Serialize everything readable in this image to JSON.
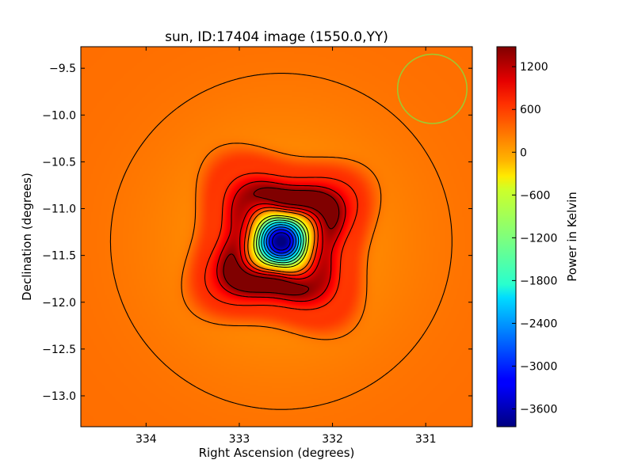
{
  "chart_data": {
    "type": "heatmap",
    "title": "sun, ID:17404 image (1550.0,YY)",
    "xlabel": "Right Ascension (degrees)",
    "ylabel": "Declination (degrees)",
    "xlim": [
      334.7,
      330.5
    ],
    "ylim": [
      -13.33,
      -9.27
    ],
    "x_inverted": true,
    "xticks": [
      334,
      333,
      332,
      331
    ],
    "xtick_labels": [
      "334",
      "333",
      "332",
      "331"
    ],
    "yticks": [
      -9.5,
      -10.0,
      -10.5,
      -11.0,
      -11.5,
      -12.0,
      -12.5,
      -13.0
    ],
    "ytick_labels": [
      "−9.5",
      "−10.0",
      "−10.5",
      "−11.0",
      "−11.5",
      "−12.0",
      "−12.5",
      "−13.0"
    ],
    "colormap": "jet",
    "colorbar": {
      "label": "Power in Kelvin",
      "range": [
        -3850,
        1480
      ],
      "ticks": [
        1200,
        600,
        0,
        -600,
        -1200,
        -1800,
        -2400,
        -3000,
        -3600
      ],
      "tick_labels": [
        "1200",
        "600",
        "0",
        "−600",
        "−1200",
        "−1800",
        "−2400",
        "−3000",
        "−3600"
      ]
    },
    "background_value": 240,
    "source": {
      "center_ra": 332.55,
      "center_dec": -11.35,
      "core_min_value": -3800,
      "ring_max_value": 1450
    },
    "beam": {
      "center_ra": 330.93,
      "center_dec": -9.72,
      "radius_deg": 0.37,
      "color": "#9acd32"
    },
    "grid": false,
    "contours": "black; solid lines for positive levels, dashed lines for negative levels"
  }
}
